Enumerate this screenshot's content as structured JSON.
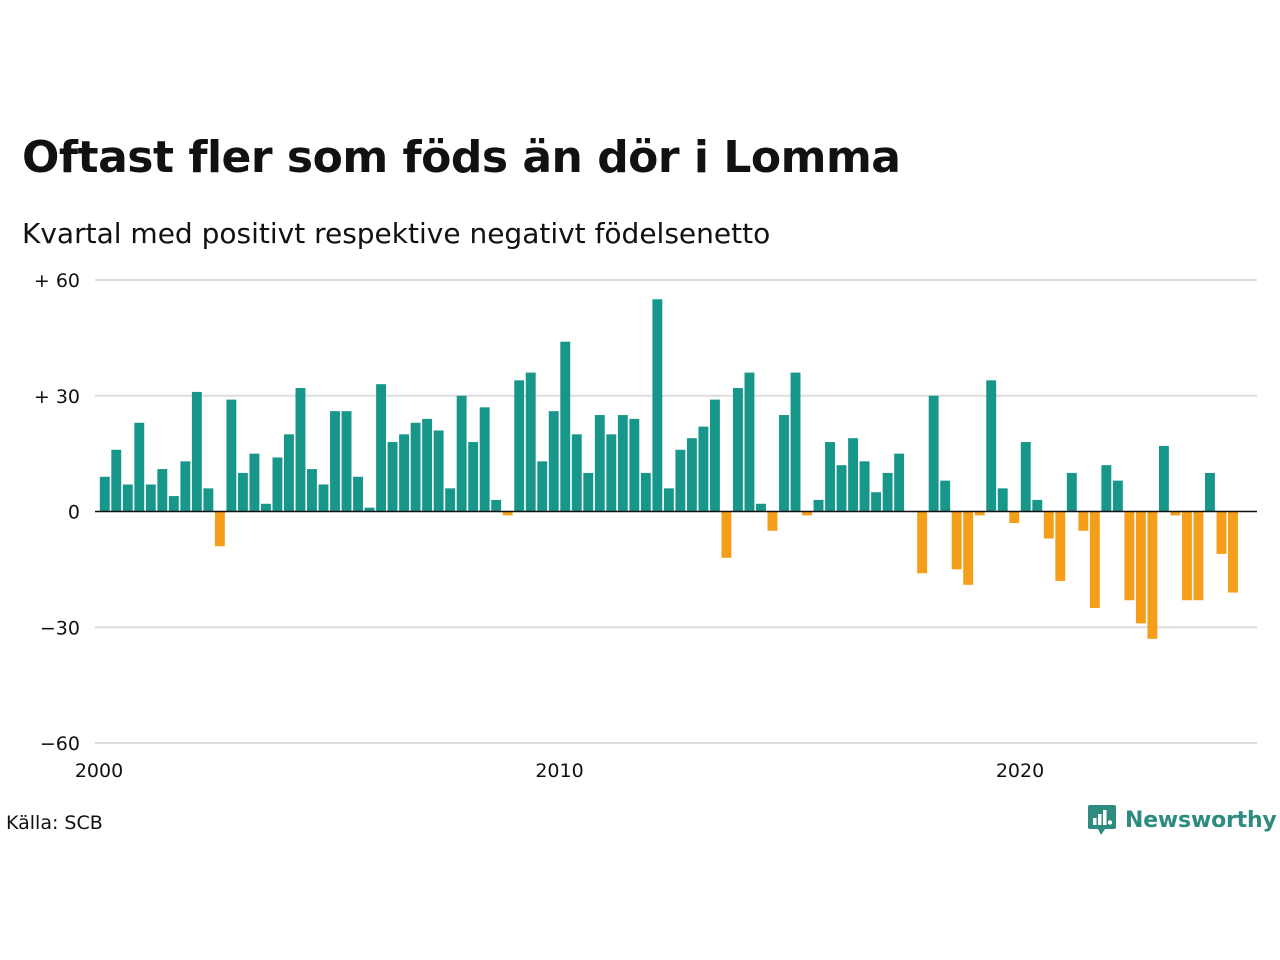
{
  "title": "Oftast fler som föds än dör i Lomma",
  "subtitle": "Kvartal med positivt respektive negativt födelsenetto",
  "source": "Källa: SCB",
  "brand": {
    "name": "Newsworthy",
    "icon": "newsworthy-logo-icon"
  },
  "colors": {
    "positive": "#17968a",
    "negative": "#f59e1a",
    "grid": "#dddddd",
    "zero": "#111111"
  },
  "chart_data": {
    "type": "bar",
    "x_start": 2000,
    "x_range": [
      2000,
      2024.75
    ],
    "x_step": 0.25,
    "xticks": [
      {
        "value": 2000,
        "label": "2000"
      },
      {
        "value": 2010,
        "label": "2010"
      },
      {
        "value": 2020,
        "label": "2020"
      }
    ],
    "ylim": [
      -60,
      60
    ],
    "yticks": [
      {
        "value": 60,
        "label": "+ 60"
      },
      {
        "value": 30,
        "label": "+ 30"
      },
      {
        "value": 0,
        "label": "0"
      },
      {
        "value": -30,
        "label": "−30"
      },
      {
        "value": -60,
        "label": "−60"
      }
    ],
    "grid": true,
    "values": [
      9,
      16,
      7,
      23,
      7,
      11,
      4,
      13,
      31,
      6,
      -9,
      29,
      10,
      15,
      2,
      14,
      20,
      32,
      11,
      7,
      26,
      26,
      9,
      1,
      33,
      18,
      20,
      23,
      24,
      21,
      6,
      30,
      18,
      27,
      3,
      -1,
      34,
      36,
      13,
      26,
      44,
      20,
      10,
      25,
      20,
      25,
      24,
      10,
      55,
      6,
      16,
      19,
      22,
      29,
      -12,
      32,
      36,
      2,
      -5,
      25,
      36,
      -1,
      3,
      18,
      12,
      19,
      13,
      5,
      10,
      15,
      0,
      -16,
      30,
      8,
      -15,
      -19,
      -1,
      34,
      6,
      -3,
      18,
      3,
      -7,
      -18,
      10,
      -5,
      -25,
      12,
      8,
      -23,
      -29,
      -33,
      17,
      -1,
      -23,
      -23,
      10,
      -11,
      -21
    ]
  }
}
